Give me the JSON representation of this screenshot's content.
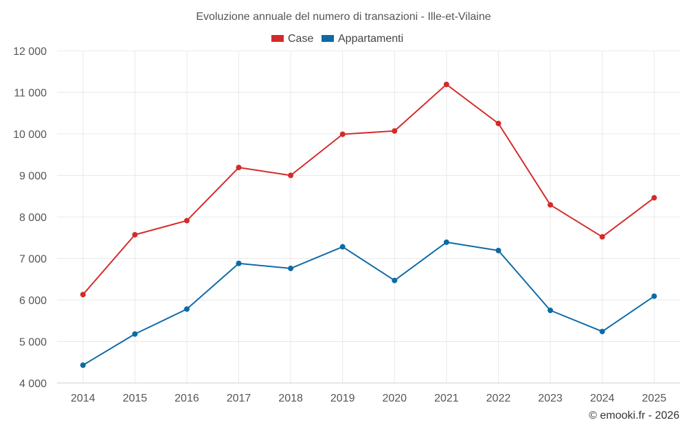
{
  "chart_data": {
    "type": "line",
    "title": "Evoluzione annuale del numero di transazioni - Ille-et-Vilaine",
    "categories": [
      "2014",
      "2015",
      "2016",
      "2017",
      "2018",
      "2019",
      "2020",
      "2021",
      "2022",
      "2023",
      "2024",
      "2025"
    ],
    "series": [
      {
        "name": "Case",
        "color": "#d42a2a",
        "values": [
          6130,
          7570,
          7910,
          9190,
          9000,
          9990,
          10070,
          11190,
          10250,
          8290,
          7520,
          8460
        ]
      },
      {
        "name": "Appartamenti",
        "color": "#0c6aa6",
        "values": [
          4430,
          5180,
          5780,
          6880,
          6760,
          7280,
          6470,
          7390,
          7190,
          5750,
          5240,
          6090
        ]
      }
    ],
    "ylim": [
      4000,
      12000
    ],
    "yticks": [
      4000,
      5000,
      6000,
      7000,
      8000,
      9000,
      10000,
      11000,
      12000
    ],
    "ytick_labels": [
      "4 000",
      "5 000",
      "6 000",
      "7 000",
      "8 000",
      "9 000",
      "10 000",
      "11 000",
      "12 000"
    ],
    "xlabel": "",
    "ylabel": "",
    "grid": true,
    "legend": "top-center"
  },
  "credit": "© emooki.fr - 2026"
}
